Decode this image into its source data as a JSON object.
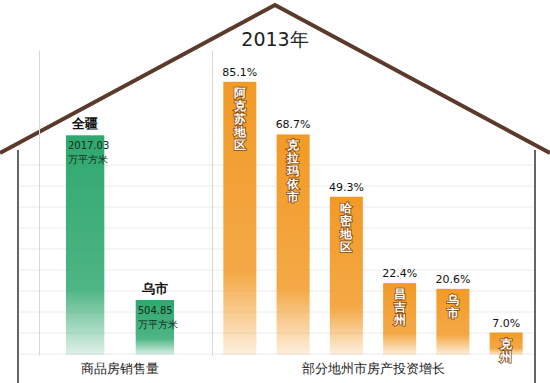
{
  "chart_data": [
    {
      "type": "bar",
      "title": "2013年",
      "xlabel": "商品房销售量",
      "categories": [
        "全疆",
        "乌市"
      ],
      "values": [
        2017.03,
        504.85
      ],
      "value_labels": [
        "2017.03 万平方米",
        "504.85 万平方米"
      ],
      "color": "#2fa86e",
      "ylim": [
        0,
        2800
      ],
      "data_labels": true,
      "tick_labels": false
    },
    {
      "type": "bar",
      "xlabel": "部分地州市房产投资增长",
      "categories": [
        "阿克苏地区",
        "克拉玛依市",
        "哈密地区",
        "昌吉州",
        "乌市",
        "克州"
      ],
      "values": [
        85.1,
        68.7,
        49.3,
        22.4,
        20.6,
        7.0
      ],
      "value_labels": [
        "85.1%",
        "68.7%",
        "49.3%",
        "22.4%",
        "20.6%",
        "7.0%"
      ],
      "color": "#f29a26",
      "ylim": [
        0,
        95
      ],
      "data_labels": true,
      "tick_labels": false
    }
  ]
}
